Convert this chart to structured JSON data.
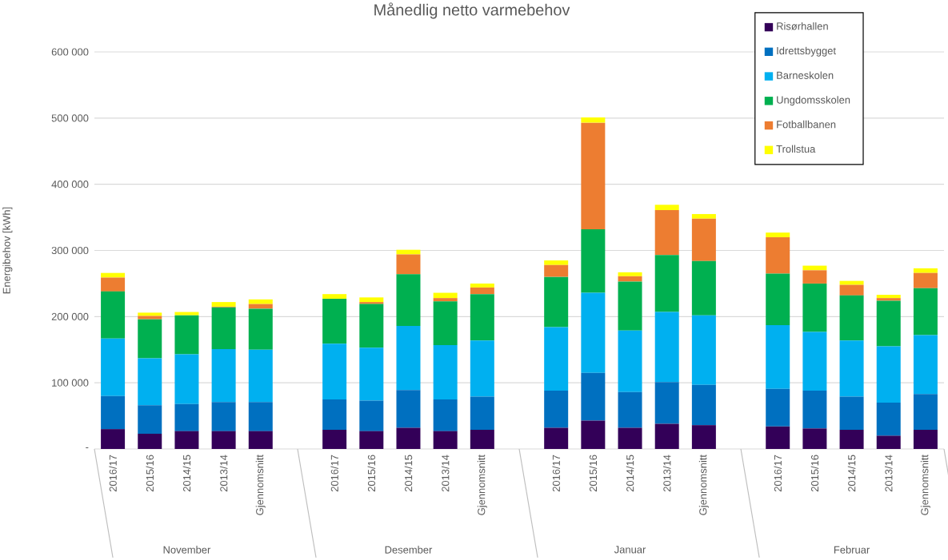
{
  "chart_data": {
    "type": "bar",
    "stacked": true,
    "title": "Månedlig netto varmebehov",
    "ylabel": "Energibehov [kWh]",
    "categories": [
      "2016/17",
      "2015/16",
      "2014/15",
      "2013/14",
      "Gjennomsnitt",
      null,
      "2016/17",
      "2015/16",
      "2014/15",
      "2013/14",
      "Gjennomsnitt",
      null,
      "2016/17",
      "2015/16",
      "2014/15",
      "2013/14",
      "Gjennomsnitt",
      null,
      "2016/17",
      "2015/16",
      "2014/15",
      "2013/14",
      "Gjennomsnitt"
    ],
    "series": [
      {
        "name": "Risørhallen",
        "color": "#330058",
        "values": [
          30000,
          23000,
          27000,
          27000,
          27000,
          null,
          29000,
          27000,
          32000,
          27000,
          29000,
          null,
          32000,
          43000,
          32000,
          38000,
          36000,
          null,
          34000,
          31000,
          29000,
          20000,
          29000
        ]
      },
      {
        "name": "Idrettsbygget",
        "color": "#0070c0",
        "values": [
          50000,
          43000,
          41000,
          44000,
          44000,
          null,
          46000,
          46000,
          57000,
          48000,
          50000,
          null,
          56000,
          72000,
          54000,
          63000,
          61000,
          null,
          57000,
          57000,
          50000,
          50000,
          54000
        ]
      },
      {
        "name": "Barneskolen",
        "color": "#00b0f0",
        "values": [
          87000,
          71000,
          75000,
          80000,
          79000,
          null,
          84000,
          80000,
          97000,
          82000,
          85000,
          null,
          96000,
          121000,
          93000,
          106000,
          105000,
          null,
          96000,
          89000,
          85000,
          85000,
          89000
        ]
      },
      {
        "name": "Ungdomsskolen",
        "color": "#00b050",
        "values": [
          71000,
          59000,
          59000,
          63000,
          62000,
          null,
          68000,
          66000,
          78000,
          66000,
          70000,
          null,
          76000,
          96000,
          74000,
          86000,
          82000,
          null,
          78000,
          73000,
          68000,
          69000,
          71000
        ]
      },
      {
        "name": "Fotballbanen",
        "color": "#ed7d31",
        "values": [
          21000,
          5000,
          0,
          1000,
          7000,
          null,
          0,
          3000,
          30000,
          5000,
          10000,
          null,
          18000,
          161000,
          8000,
          68000,
          64000,
          null,
          55000,
          20000,
          16000,
          4000,
          23000
        ]
      },
      {
        "name": "Trollstua",
        "color": "#ffff00",
        "values": [
          7000,
          5000,
          5000,
          7000,
          7000,
          null,
          7000,
          7000,
          7000,
          8000,
          6000,
          null,
          7000,
          8000,
          6000,
          8000,
          7000,
          null,
          7000,
          7000,
          6000,
          5000,
          7000
        ]
      }
    ],
    "ylim": [
      0,
      600000
    ],
    "yticks": [
      {
        "value": 0,
        "label": "-"
      },
      {
        "value": 100000,
        "label": "100 000"
      },
      {
        "value": 200000,
        "label": "200 000"
      },
      {
        "value": 300000,
        "label": "300 000"
      },
      {
        "value": 400000,
        "label": "400 000"
      },
      {
        "value": 500000,
        "label": "500 000"
      },
      {
        "value": 600000,
        "label": "600 000"
      }
    ],
    "grid": "y",
    "legend": "top right",
    "annotations": [
      "November",
      "Desember",
      "Januar",
      "Februar"
    ]
  }
}
